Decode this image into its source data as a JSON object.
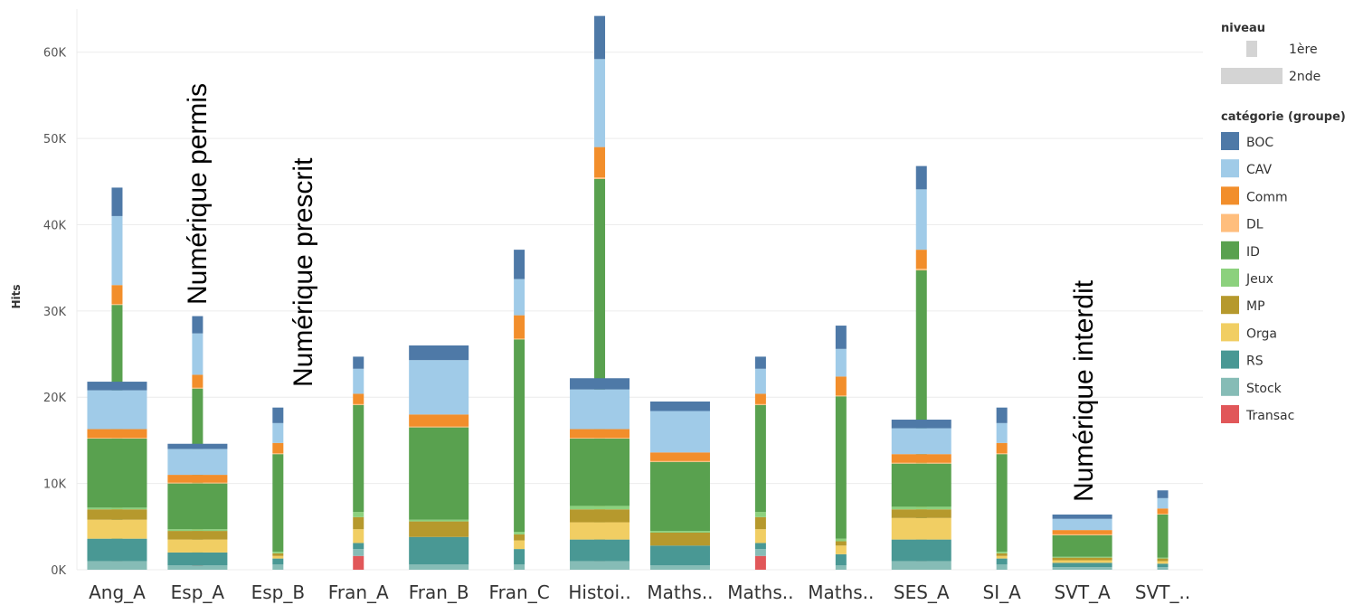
{
  "colors": {
    "BOC": "#4e79a7",
    "CAV": "#a0cbe8",
    "Comm": "#f28e2b",
    "DL": "#ffbe7d",
    "ID": "#59a14f",
    "Jeux": "#8cd17d",
    "MP": "#b6992d",
    "Orga": "#f1ce63",
    "RS": "#499894",
    "Stock": "#86bcb6",
    "Transac": "#e15759"
  },
  "legend": {
    "size_title": "niveau",
    "size_items": [
      "1ère",
      "2nde"
    ],
    "color_title": "catégorie (groupe)",
    "color_items": [
      "BOC",
      "CAV",
      "Comm",
      "DL",
      "ID",
      "Jeux",
      "MP",
      "Orga",
      "RS",
      "Stock",
      "Transac"
    ]
  },
  "annotations": [
    "Numérique permis",
    "Numérique prescrit",
    "Numérique interdit"
  ],
  "chart_data": {
    "type": "bar",
    "subtype": "stacked bar, width encodes niveau",
    "ylabel": "Hits",
    "xlabel": "",
    "ylim": [
      0,
      65000
    ],
    "yticks": [
      0,
      10000,
      20000,
      30000,
      40000,
      50000,
      60000
    ],
    "ytick_labels": [
      "0K",
      "10K",
      "20K",
      "30K",
      "40K",
      "50K",
      "60K"
    ],
    "grid": true,
    "legend_position": "right",
    "categories": [
      "Ang_A",
      "Esp_A",
      "Esp_B",
      "Fran_A",
      "Fran_B",
      "Fran_C",
      "Histoi..",
      "Maths..",
      "Maths..",
      "Maths..",
      "SES_A",
      "SI_A",
      "SVT_A",
      "SVT_.."
    ],
    "segment_order": [
      "Transac",
      "Stock",
      "RS",
      "Orga",
      "MP",
      "Jeux",
      "ID",
      "DL",
      "Comm",
      "CAV",
      "BOC"
    ],
    "bars": [
      {
        "category": "Ang_A",
        "niveau": "1ère",
        "segments": {
          "Transac": 1500,
          "Stock": 1200,
          "RS": 3500,
          "Orga": 2200,
          "MP": 2000,
          "Jeux": 300,
          "ID": 20000,
          "DL": 100,
          "Comm": 2200,
          "CAV": 8000,
          "BOC": 3300
        }
      },
      {
        "category": "Ang_A",
        "niveau": "2nde",
        "segments": {
          "Transac": 0,
          "Stock": 1000,
          "RS": 2600,
          "Orga": 2200,
          "MP": 1200,
          "Jeux": 200,
          "ID": 8000,
          "DL": 100,
          "Comm": 1000,
          "CAV": 4500,
          "BOC": 1000
        }
      },
      {
        "category": "Esp_A",
        "niveau": "1ère",
        "segments": {
          "Transac": 1000,
          "Stock": 700,
          "RS": 2000,
          "Orga": 2000,
          "MP": 1500,
          "Jeux": 300,
          "ID": 13500,
          "DL": 100,
          "Comm": 1500,
          "CAV": 4800,
          "BOC": 2000
        }
      },
      {
        "category": "Esp_A",
        "niveau": "2nde",
        "segments": {
          "Transac": 0,
          "Stock": 500,
          "RS": 1500,
          "Orga": 1500,
          "MP": 1000,
          "Jeux": 200,
          "ID": 5300,
          "DL": 100,
          "Comm": 900,
          "CAV": 3000,
          "BOC": 600
        }
      },
      {
        "category": "Esp_B",
        "niveau": "1ère",
        "segments": {
          "Transac": 0,
          "Stock": 600,
          "RS": 700,
          "Orga": 300,
          "MP": 300,
          "Jeux": 200,
          "ID": 11300,
          "DL": 100,
          "Comm": 1200,
          "CAV": 2300,
          "BOC": 1800
        }
      },
      {
        "category": "Fran_A",
        "niveau": "1ère",
        "segments": {
          "Transac": 1600,
          "Stock": 800,
          "RS": 700,
          "Orga": 1600,
          "MP": 1400,
          "Jeux": 600,
          "ID": 12400,
          "DL": 100,
          "Comm": 1200,
          "CAV": 2900,
          "BOC": 1400
        }
      },
      {
        "category": "Fran_B",
        "niveau": "2nde",
        "segments": {
          "Transac": 0,
          "Stock": 600,
          "RS": 3200,
          "Orga": 0,
          "MP": 1800,
          "Jeux": 200,
          "ID": 10700,
          "DL": 100,
          "Comm": 1400,
          "CAV": 6300,
          "BOC": 1700
        }
      },
      {
        "category": "Fran_C",
        "niveau": "1ère",
        "segments": {
          "Transac": 0,
          "Stock": 600,
          "RS": 1800,
          "Orga": 1000,
          "MP": 700,
          "Jeux": 300,
          "ID": 22300,
          "DL": 100,
          "Comm": 2700,
          "CAV": 4200,
          "BOC": 3400
        }
      },
      {
        "category": "Histoi..",
        "niveau": "1ère",
        "segments": {
          "Transac": 1200,
          "Stock": 1700,
          "RS": 4000,
          "Orga": 3000,
          "MP": 2700,
          "Jeux": 700,
          "ID": 32000,
          "DL": 200,
          "Comm": 3500,
          "CAV": 10200,
          "BOC": 5000
        }
      },
      {
        "category": "Histoi..",
        "niveau": "2nde",
        "segments": {
          "Transac": 0,
          "Stock": 1000,
          "RS": 2500,
          "Orga": 2000,
          "MP": 1500,
          "Jeux": 400,
          "ID": 7800,
          "DL": 100,
          "Comm": 1000,
          "CAV": 4600,
          "BOC": 1300
        }
      },
      {
        "category": "Maths..",
        "niveau": "2nde",
        "segments": {
          "Transac": 0,
          "Stock": 500,
          "RS": 2300,
          "Orga": 0,
          "MP": 1500,
          "Jeux": 200,
          "ID": 8000,
          "DL": 100,
          "Comm": 1000,
          "CAV": 4800,
          "BOC": 1100
        }
      },
      {
        "category": "Maths..",
        "niveau": "1ère",
        "segments": {
          "Transac": 1600,
          "Stock": 800,
          "RS": 700,
          "Orga": 1600,
          "MP": 1400,
          "Jeux": 600,
          "ID": 12400,
          "DL": 100,
          "Comm": 1200,
          "CAV": 2900,
          "BOC": 1400
        }
      },
      {
        "category": "Maths..",
        "niveau": "1ère",
        "segments": {
          "Transac": 0,
          "Stock": 500,
          "RS": 1300,
          "Orga": 1000,
          "MP": 500,
          "Jeux": 300,
          "ID": 16500,
          "DL": 100,
          "Comm": 2200,
          "CAV": 3200,
          "BOC": 2700
        }
      },
      {
        "category": "SES_A",
        "niveau": "1ère",
        "segments": {
          "Transac": 2200,
          "Stock": 1600,
          "RS": 2700,
          "Orga": 3000,
          "MP": 2700,
          "Jeux": 500,
          "ID": 22000,
          "DL": 200,
          "Comm": 2200,
          "CAV": 7000,
          "BOC": 2700
        }
      },
      {
        "category": "SES_A",
        "niveau": "2nde",
        "segments": {
          "Transac": 0,
          "Stock": 1000,
          "RS": 2500,
          "Orga": 2500,
          "MP": 1000,
          "Jeux": 300,
          "ID": 5000,
          "DL": 100,
          "Comm": 1000,
          "CAV": 3000,
          "BOC": 1000
        }
      },
      {
        "category": "SI_A",
        "niveau": "1ère",
        "segments": {
          "Transac": 0,
          "Stock": 600,
          "RS": 700,
          "Orga": 300,
          "MP": 300,
          "Jeux": 200,
          "ID": 11300,
          "DL": 100,
          "Comm": 1200,
          "CAV": 2300,
          "BOC": 1800
        }
      },
      {
        "category": "SVT_A",
        "niveau": "2nde",
        "segments": {
          "Transac": 0,
          "Stock": 300,
          "RS": 500,
          "Orga": 300,
          "MP": 300,
          "Jeux": 100,
          "ID": 2500,
          "DL": 100,
          "Comm": 500,
          "CAV": 1300,
          "BOC": 500
        }
      },
      {
        "category": "SVT_..",
        "niveau": "1ère",
        "segments": {
          "Transac": 0,
          "Stock": 300,
          "RS": 400,
          "Orga": 300,
          "MP": 300,
          "Jeux": 100,
          "ID": 5000,
          "DL": 100,
          "Comm": 600,
          "CAV": 1200,
          "BOC": 900
        }
      }
    ]
  }
}
